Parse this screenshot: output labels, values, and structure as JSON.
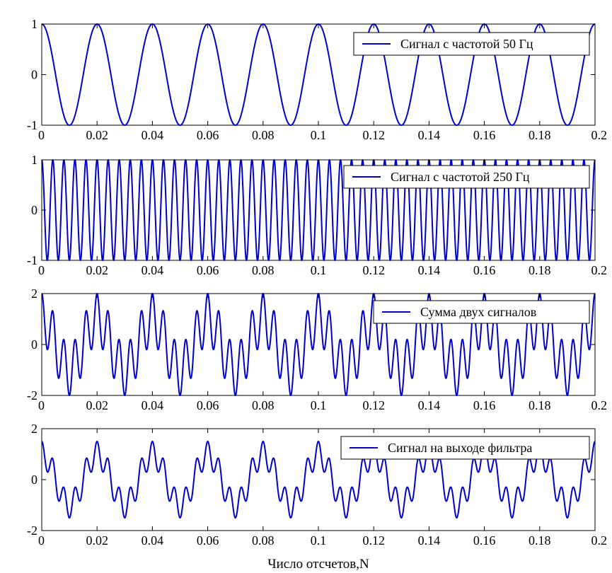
{
  "chart_data": [
    {
      "type": "line",
      "legend": "Сигнал с частотой 50 Гц",
      "legend_position": "top-right",
      "series": [
        {
          "name": "Сигнал с частотой 50 Гц",
          "function": "cos(2*pi*50*t)",
          "components": [
            {
              "amplitude": 1,
              "frequency_hz": 50
            }
          ]
        }
      ],
      "xlim": [
        0,
        0.2
      ],
      "ylim": [
        -1,
        1
      ],
      "xticks": [
        "0",
        "0.02",
        "0.04",
        "0.06",
        "0.08",
        "0.1",
        "0.12",
        "0.14",
        "0.16",
        "0.18",
        "0.2"
      ],
      "yticks": [
        "-1",
        "0",
        "1"
      ],
      "color": "#0000cc",
      "grid": false
    },
    {
      "type": "line",
      "legend": "Сигнал с частотой 250 Гц",
      "legend_position": "top-right",
      "series": [
        {
          "name": "Сигнал с частотой 250 Гц",
          "function": "cos(2*pi*250*t)",
          "components": [
            {
              "amplitude": 1,
              "frequency_hz": 250
            }
          ]
        }
      ],
      "xlim": [
        0,
        0.2
      ],
      "ylim": [
        -1,
        1
      ],
      "xticks": [
        "0",
        "0.02",
        "0.04",
        "0.06",
        "0.08",
        "0.1",
        "0.12",
        "0.14",
        "0.16",
        "0.18",
        "0.2"
      ],
      "yticks": [
        "-1",
        "0",
        "1"
      ],
      "color": "#0000cc",
      "grid": false
    },
    {
      "type": "line",
      "legend": "Сумма двух сигналов",
      "legend_position": "top-right",
      "series": [
        {
          "name": "Сумма двух сигналов",
          "function": "cos(2*pi*50*t)+cos(2*pi*250*t)",
          "components": [
            {
              "amplitude": 1,
              "frequency_hz": 50
            },
            {
              "amplitude": 1,
              "frequency_hz": 250
            }
          ]
        }
      ],
      "xlim": [
        0,
        0.2
      ],
      "ylim": [
        -2,
        2
      ],
      "xticks": [
        "0",
        "0.02",
        "0.04",
        "0.06",
        "0.08",
        "0.1",
        "0.12",
        "0.14",
        "0.16",
        "0.18",
        "0.2"
      ],
      "yticks": [
        "-2",
        "0",
        "2"
      ],
      "color": "#0000cc",
      "grid": false
    },
    {
      "type": "line",
      "legend": "Сигнал на выходе фильтра",
      "legend_position": "top-right",
      "series": [
        {
          "name": "Сигнал на выходе фильтра",
          "function": "cos(2*pi*50*t)+0.5*cos(2*pi*250*t)",
          "components": [
            {
              "amplitude": 1,
              "frequency_hz": 50
            },
            {
              "amplitude": 0.5,
              "frequency_hz": 250
            }
          ]
        }
      ],
      "xlim": [
        0,
        0.2
      ],
      "ylim": [
        -2,
        2
      ],
      "xticks": [
        "0",
        "0.02",
        "0.04",
        "0.06",
        "0.08",
        "0.1",
        "0.12",
        "0.14",
        "0.16",
        "0.18",
        "0.2"
      ],
      "yticks": [
        "-2",
        "0",
        "2"
      ],
      "color": "#0000cc",
      "grid": false
    }
  ],
  "xlabel": "Число отсчетов,N"
}
